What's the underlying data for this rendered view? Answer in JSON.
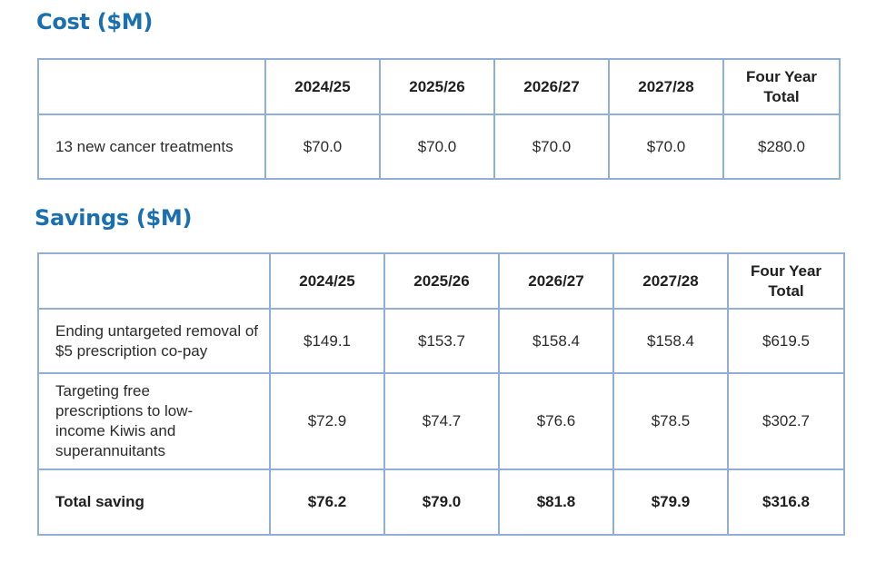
{
  "cost": {
    "title": "Cost ($M)",
    "columns": [
      "",
      "2024/25",
      "2025/26",
      "2026/27",
      "2027/28",
      "Four Year Total"
    ],
    "rows": [
      [
        "13 new cancer treatments",
        "$70.0",
        "$70.0",
        "$70.0",
        "$70.0",
        "$280.0"
      ]
    ]
  },
  "savings": {
    "title": "Savings ($M)",
    "columns": [
      "",
      "2024/25",
      "2025/26",
      "2026/27",
      "2027/28",
      "Four Year Total"
    ],
    "rows": [
      [
        "Ending untargeted removal of $5 prescription co-pay",
        "$149.1",
        "$153.7",
        "$158.4",
        "$158.4",
        "$619.5"
      ],
      [
        "Targeting free prescriptions to low-income Kiwis and superannuitants",
        "$72.9",
        "$74.7",
        "$76.6",
        "$78.5",
        "$302.7"
      ],
      [
        "Total saving",
        "$76.2",
        "$79.0",
        "$81.8",
        "$79.9",
        "$316.8"
      ]
    ]
  }
}
